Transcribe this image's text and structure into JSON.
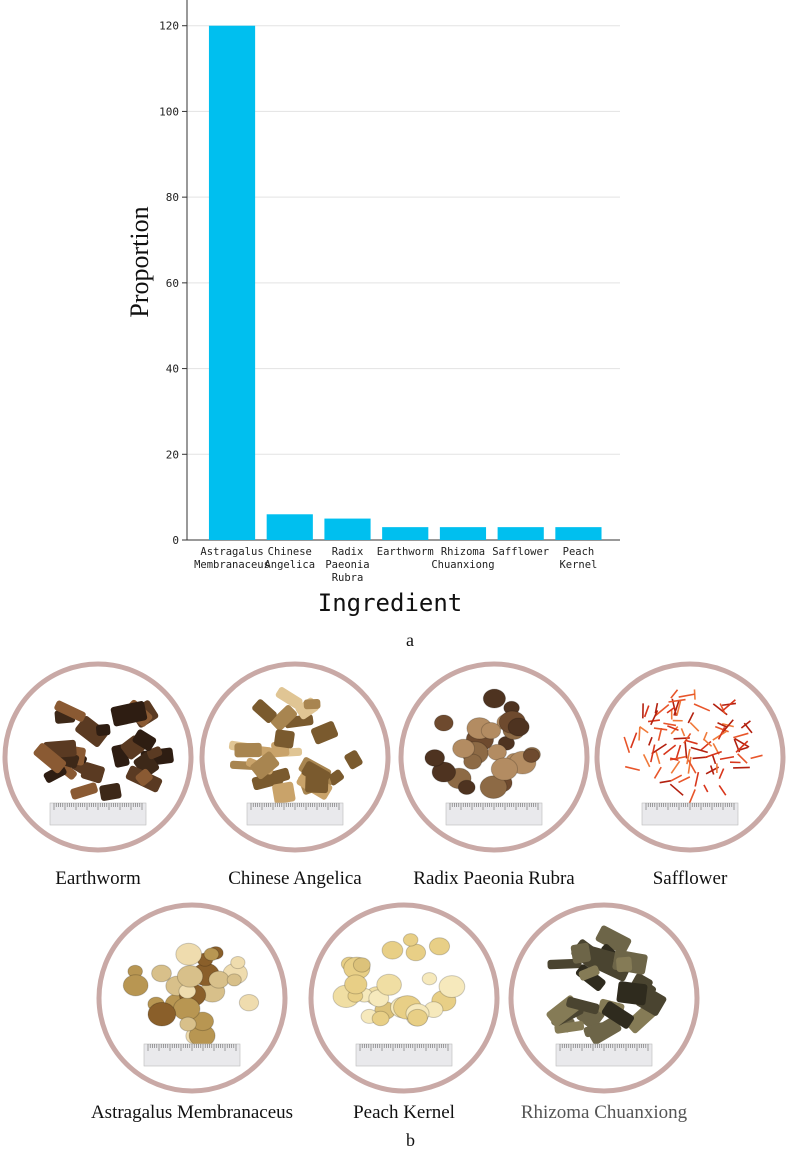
{
  "chart_data": {
    "type": "bar",
    "categories": [
      [
        "Astragalus",
        "Membranaceus"
      ],
      [
        "Chinese",
        "Angelica"
      ],
      [
        "Radix",
        "Paeonia",
        "Rubra"
      ],
      [
        "Earthworm"
      ],
      [
        "Rhizoma",
        "Chuanxiong"
      ],
      [
        "Safflower"
      ],
      [
        "Peach",
        "Kernel"
      ]
    ],
    "values": [
      120,
      6,
      5,
      3,
      3,
      3,
      3
    ],
    "xlabel": "Ingredient",
    "ylabel": "Proportion",
    "ylim": [
      0,
      126
    ],
    "yticks": [
      0,
      20,
      40,
      60,
      80,
      100,
      120
    ],
    "grid": true,
    "bar_color": "#00bfef"
  },
  "panel_labels": {
    "a": "a",
    "b": "b"
  },
  "herbs": [
    {
      "name": "Earthworm",
      "image": "earthworm-photo"
    },
    {
      "name": "Chinese Angelica",
      "image": "chinese-angelica-photo"
    },
    {
      "name": "Radix Paeonia Rubra",
      "image": "radix-paeonia-rubra-photo"
    },
    {
      "name": "Safflower",
      "image": "safflower-photo"
    },
    {
      "name": "Astragalus Membranaceus",
      "image": "astragalus-membranaceus-photo"
    },
    {
      "name": "Peach Kernel",
      "image": "peach-kernel-photo"
    },
    {
      "name": "Rhizoma Chuanxiong",
      "image": "rhizoma-chuanxiong-photo"
    }
  ],
  "colors": {
    "frame": "#c9a9a6",
    "ruler": "#e9e9ec"
  }
}
